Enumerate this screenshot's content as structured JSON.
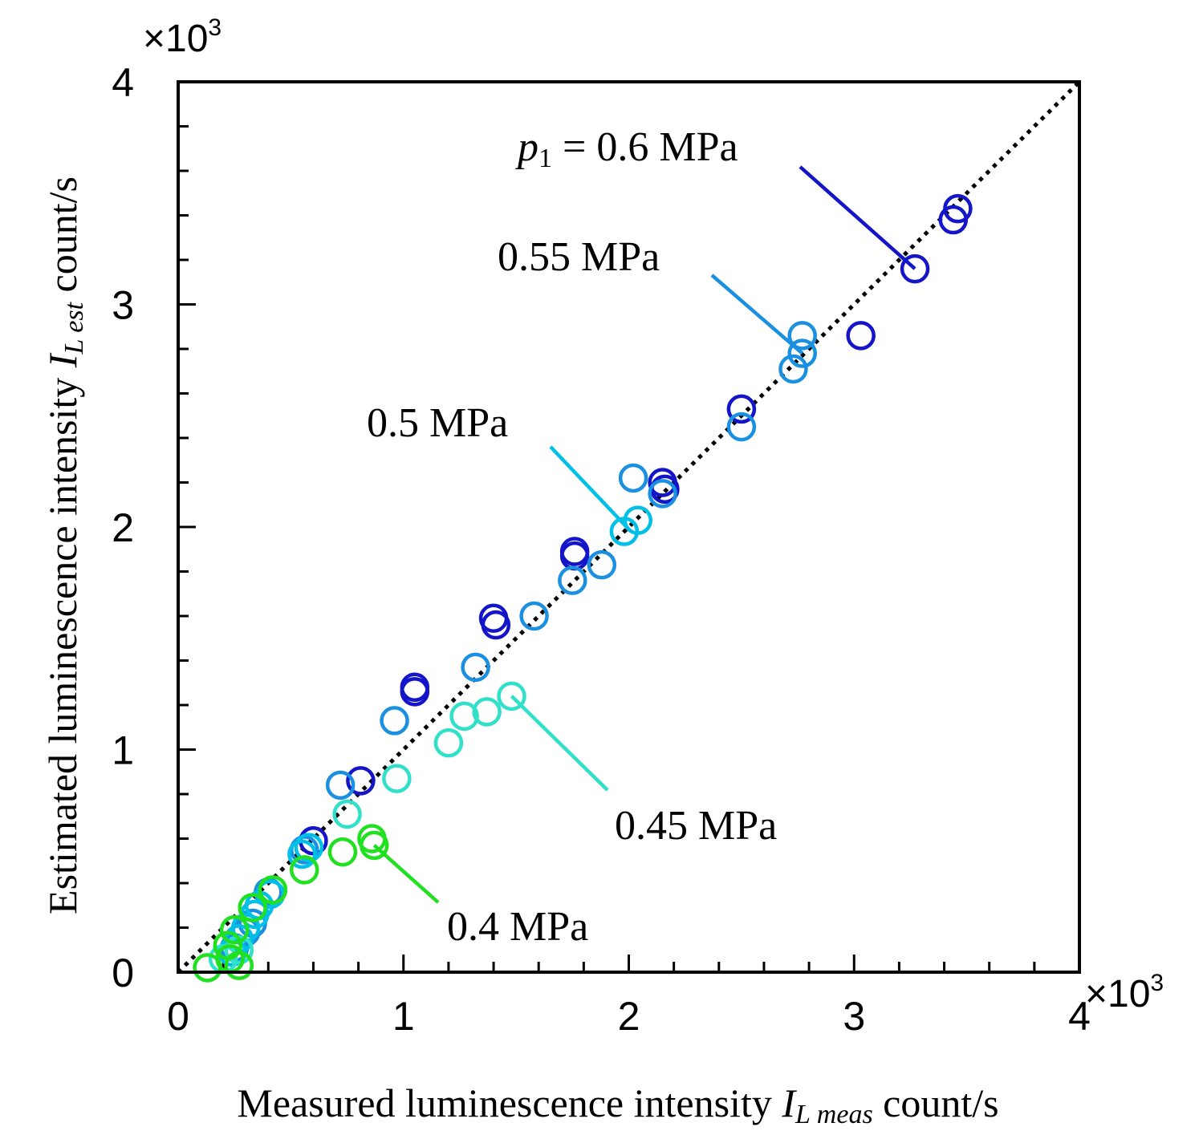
{
  "chart_data": {
    "type": "scatter",
    "xlabel": {
      "main": "Measured luminescence intensity ",
      "sym": "I",
      "sub": "L meas",
      "unit": " count/s"
    },
    "ylabel": {
      "main": "Estimated luminescence intensity ",
      "sym": "I",
      "sub": "L est",
      "unit": " count/s"
    },
    "x_multiplier": {
      "base": "×10",
      "exp": "3"
    },
    "y_multiplier": {
      "base": "×10",
      "exp": "3"
    },
    "xlim": [
      0,
      4
    ],
    "ylim": [
      0,
      4
    ],
    "xticks": [
      "0",
      "1",
      "2",
      "3",
      "4"
    ],
    "yticks": [
      "0",
      "1",
      "2",
      "3",
      "4"
    ],
    "reference_line": {
      "style": "dotted",
      "from": [
        0,
        0
      ],
      "to": [
        4,
        4
      ]
    },
    "series": [
      {
        "name": "0.6 MPa",
        "color": "#1414c8",
        "points": [
          [
            3.46,
            3.43
          ],
          [
            3.44,
            3.38
          ],
          [
            3.27,
            3.16
          ],
          [
            3.03,
            2.86
          ],
          [
            2.5,
            2.53
          ],
          [
            2.15,
            2.2
          ],
          [
            2.16,
            2.17
          ],
          [
            1.76,
            1.89
          ],
          [
            1.76,
            1.87
          ],
          [
            1.4,
            1.59
          ],
          [
            1.41,
            1.56
          ],
          [
            1.05,
            1.28
          ],
          [
            1.05,
            1.26
          ],
          [
            0.81,
            0.86
          ],
          [
            0.6,
            0.59
          ]
        ]
      },
      {
        "name": "0.55 MPa",
        "color": "#1c90e0",
        "points": [
          [
            2.77,
            2.86
          ],
          [
            2.77,
            2.78
          ],
          [
            2.73,
            2.71
          ],
          [
            2.5,
            2.45
          ],
          [
            2.15,
            2.15
          ],
          [
            2.02,
            2.22
          ],
          [
            1.88,
            1.83
          ],
          [
            1.75,
            1.76
          ],
          [
            1.58,
            1.6
          ],
          [
            1.32,
            1.37
          ],
          [
            0.96,
            1.13
          ],
          [
            0.72,
            0.84
          ],
          [
            0.56,
            0.55
          ],
          [
            0.4,
            0.36
          ],
          [
            0.33,
            0.22
          ],
          [
            0.3,
            0.18
          ],
          [
            0.25,
            0.11
          ]
        ]
      },
      {
        "name": "0.5 MPa",
        "color": "#00c0e8",
        "points": [
          [
            2.04,
            2.03
          ],
          [
            1.98,
            1.98
          ],
          [
            0.58,
            0.56
          ],
          [
            0.55,
            0.53
          ],
          [
            0.41,
            0.35
          ],
          [
            0.36,
            0.3
          ],
          [
            0.34,
            0.26
          ],
          [
            0.3,
            0.2
          ],
          [
            0.27,
            0.15
          ],
          [
            0.24,
            0.09
          ]
        ]
      },
      {
        "name": "0.45 MPa",
        "color": "#30e0c8",
        "points": [
          [
            1.48,
            1.24
          ],
          [
            1.37,
            1.17
          ],
          [
            1.27,
            1.15
          ],
          [
            1.2,
            1.03
          ],
          [
            0.97,
            0.87
          ],
          [
            0.75,
            0.71
          ],
          [
            0.2,
            0.06
          ],
          [
            0.27,
            0.1
          ]
        ]
      },
      {
        "name": "0.4 MPa",
        "color": "#20e020",
        "points": [
          [
            0.86,
            0.6
          ],
          [
            0.87,
            0.57
          ],
          [
            0.73,
            0.54
          ],
          [
            0.56,
            0.46
          ],
          [
            0.42,
            0.37
          ],
          [
            0.33,
            0.29
          ],
          [
            0.25,
            0.19
          ],
          [
            0.22,
            0.12
          ],
          [
            0.23,
            0.06
          ],
          [
            0.13,
            0.02
          ],
          [
            0.27,
            0.03
          ]
        ]
      }
    ],
    "annotations": [
      {
        "series": "0.6 MPa",
        "label": {
          "sym": "p",
          "sub": "1",
          "rest": " = 0.6 MPa"
        }
      },
      {
        "series": "0.55 MPa",
        "label": {
          "text": "0.55 MPa"
        }
      },
      {
        "series": "0.5 MPa",
        "label": {
          "text": "0.5 MPa"
        }
      },
      {
        "series": "0.45 MPa",
        "label": {
          "text": "0.45 MPa"
        }
      },
      {
        "series": "0.4 MPa",
        "label": {
          "text": "0.4 MPa"
        }
      }
    ]
  }
}
